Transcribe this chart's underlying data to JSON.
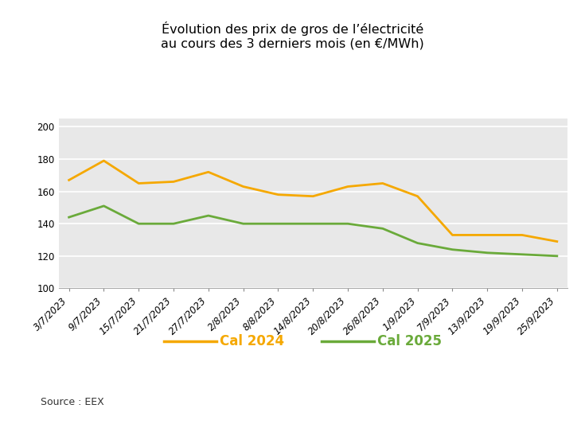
{
  "title_line1": "Évolution des prix de gros de l’électricité",
  "title_line2": "au cours des 3 derniers mois (en €/MWh)",
  "source": "Source : EEX",
  "x_labels": [
    "3/7/2023",
    "9/7/2023",
    "15/7/2023",
    "21/7/2023",
    "27/7/2023",
    "2/8/2023",
    "8/8/2023",
    "14/8/2023",
    "20/8/2023",
    "26/8/2023",
    "1/9/2023",
    "7/9/2023",
    "13/9/2023",
    "19/9/2023",
    "25/9/2023"
  ],
  "cal2024": [
    167,
    179,
    165,
    166,
    172,
    163,
    158,
    157,
    163,
    165,
    157,
    133,
    133,
    133,
    129
  ],
  "cal2025": [
    144,
    151,
    140,
    140,
    145,
    140,
    140,
    140,
    140,
    137,
    128,
    124,
    122,
    121,
    120
  ],
  "cal2024_color": "#f5a800",
  "cal2025_color": "#6aaa3a",
  "ylim": [
    100,
    205
  ],
  "yticks": [
    100,
    120,
    140,
    160,
    180,
    200
  ],
  "plot_bg": "#e8e8e8",
  "legend_cal2024": "Cal 2024",
  "legend_cal2025": "Cal 2025",
  "linewidth": 2.0,
  "title_fontsize": 11.5,
  "tick_fontsize": 8.5,
  "legend_fontsize": 12,
  "source_fontsize": 9
}
